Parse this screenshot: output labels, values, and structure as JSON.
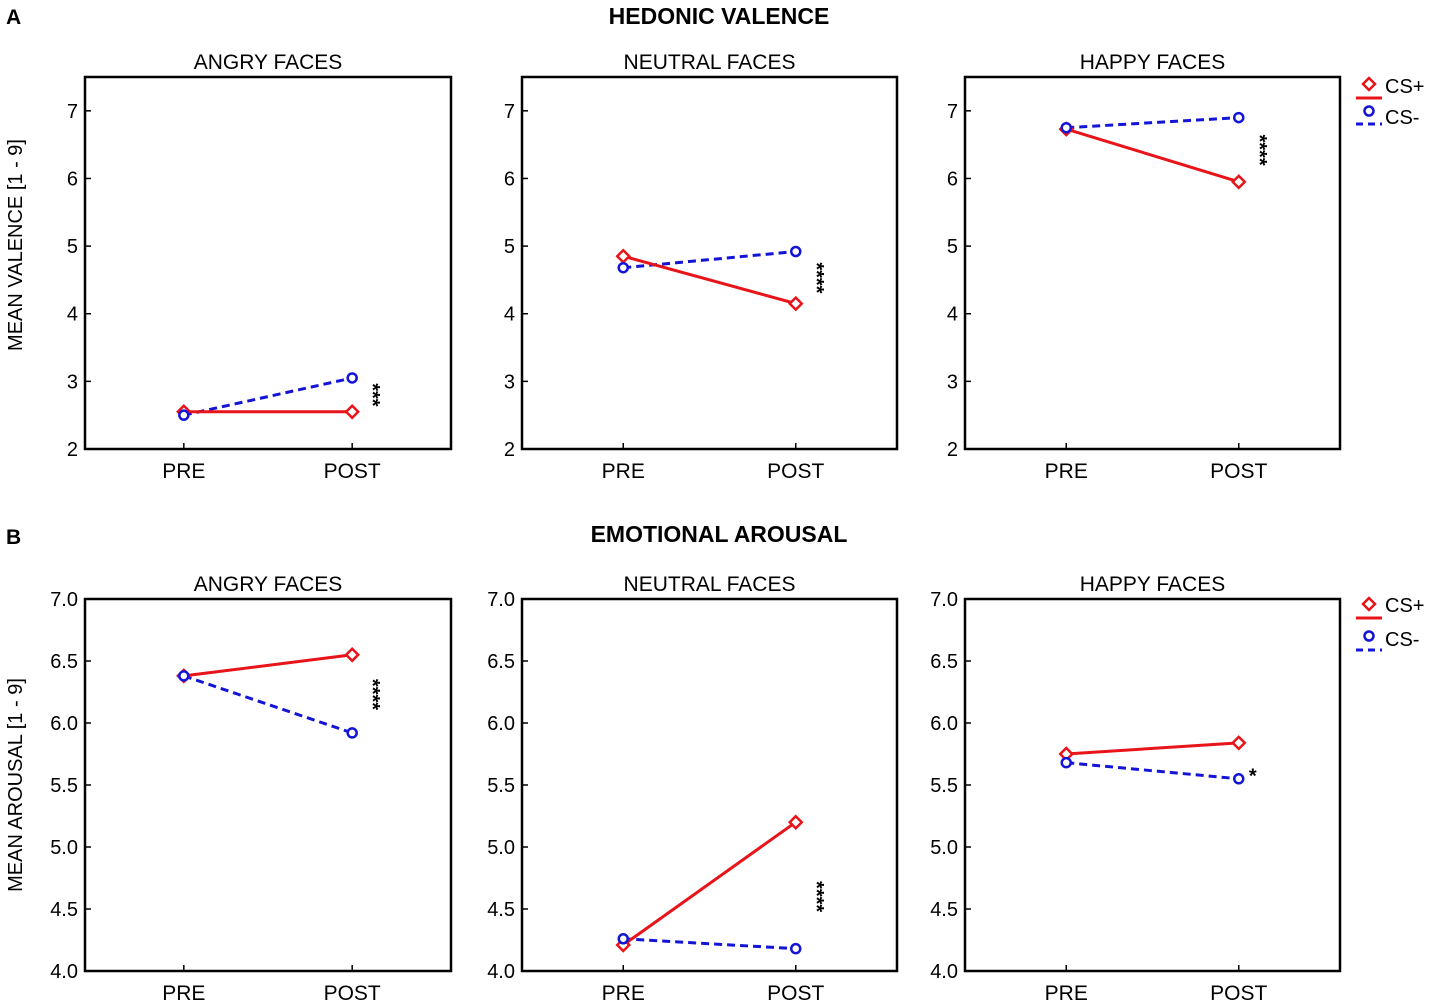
{
  "sections": [
    {
      "letter": "A",
      "title": "HEDONIC VALENCE",
      "ylabel": "MEAN VALENCE [1 - 9]",
      "legend": [
        "CS+",
        "CS-"
      ]
    },
    {
      "letter": "B",
      "title": "EMOTIONAL AROUSAL",
      "ylabel": "MEAN AROUSAL [1 - 9]",
      "legend": [
        "CS+",
        "CS-"
      ]
    }
  ],
  "colors": {
    "cs_plus": "#e8141a",
    "cs_minus": "#1414d6"
  },
  "chart_data": [
    {
      "type": "line",
      "title": "ANGRY FACES",
      "section": "HEDONIC VALENCE",
      "categories": [
        "PRE",
        "POST"
      ],
      "ylabel": "MEAN VALENCE [1 - 9]",
      "ylim": [
        2,
        7.5
      ],
      "yticks": [
        "2",
        "3",
        "4",
        "5",
        "6",
        "7"
      ],
      "series": [
        {
          "name": "CS+",
          "values": [
            2.55,
            2.55
          ]
        },
        {
          "name": "CS-",
          "values": [
            2.5,
            3.05
          ]
        }
      ],
      "significance": "***",
      "sig_y": 2.8
    },
    {
      "type": "line",
      "title": "NEUTRAL FACES",
      "section": "HEDONIC VALENCE",
      "categories": [
        "PRE",
        "POST"
      ],
      "ylabel": "",
      "ylim": [
        2,
        7.5
      ],
      "yticks": [
        "2",
        "3",
        "4",
        "5",
        "6",
        "7"
      ],
      "series": [
        {
          "name": "CS+",
          "values": [
            4.85,
            4.15
          ]
        },
        {
          "name": "CS-",
          "values": [
            4.68,
            4.92
          ]
        }
      ],
      "significance": "****",
      "sig_y": 4.53
    },
    {
      "type": "line",
      "title": "HAPPY FACES",
      "section": "HEDONIC VALENCE",
      "categories": [
        "PRE",
        "POST"
      ],
      "ylabel": "",
      "ylim": [
        2,
        7.5
      ],
      "yticks": [
        "2",
        "3",
        "4",
        "5",
        "6",
        "7"
      ],
      "series": [
        {
          "name": "CS+",
          "values": [
            6.73,
            5.95
          ]
        },
        {
          "name": "CS-",
          "values": [
            6.75,
            6.9
          ]
        }
      ],
      "significance": "****",
      "sig_y": 6.42
    },
    {
      "type": "line",
      "title": "ANGRY FACES",
      "section": "EMOTIONAL AROUSAL",
      "categories": [
        "PRE",
        "POST"
      ],
      "ylabel": "MEAN AROUSAL [1 - 9]",
      "ylim": [
        4.0,
        7.0
      ],
      "yticks": [
        "4.0",
        "4.5",
        "5.0",
        "5.5",
        "6.0",
        "6.5",
        "7.0"
      ],
      "series": [
        {
          "name": "CS+",
          "values": [
            6.38,
            6.55
          ]
        },
        {
          "name": "CS-",
          "values": [
            6.38,
            5.92
          ]
        }
      ],
      "significance": "****",
      "sig_y": 6.23
    },
    {
      "type": "line",
      "title": "NEUTRAL FACES",
      "section": "EMOTIONAL AROUSAL",
      "categories": [
        "PRE",
        "POST"
      ],
      "ylabel": "",
      "ylim": [
        4.0,
        7.0
      ],
      "yticks": [
        "4.0",
        "4.5",
        "5.0",
        "5.5",
        "6.0",
        "6.5",
        "7.0"
      ],
      "series": [
        {
          "name": "CS+",
          "values": [
            4.21,
            5.2
          ]
        },
        {
          "name": "CS-",
          "values": [
            4.26,
            4.18
          ]
        }
      ],
      "significance": "****",
      "sig_y": 4.6
    },
    {
      "type": "line",
      "title": "HAPPY FACES",
      "section": "EMOTIONAL AROUSAL",
      "categories": [
        "PRE",
        "POST"
      ],
      "ylabel": "",
      "ylim": [
        4.0,
        7.0
      ],
      "yticks": [
        "4.0",
        "4.5",
        "5.0",
        "5.5",
        "6.0",
        "6.5",
        "7.0"
      ],
      "series": [
        {
          "name": "CS+",
          "values": [
            5.75,
            5.84
          ]
        },
        {
          "name": "CS-",
          "values": [
            5.68,
            5.55
          ]
        }
      ],
      "significance": "*",
      "sig_y": 5.6
    }
  ]
}
